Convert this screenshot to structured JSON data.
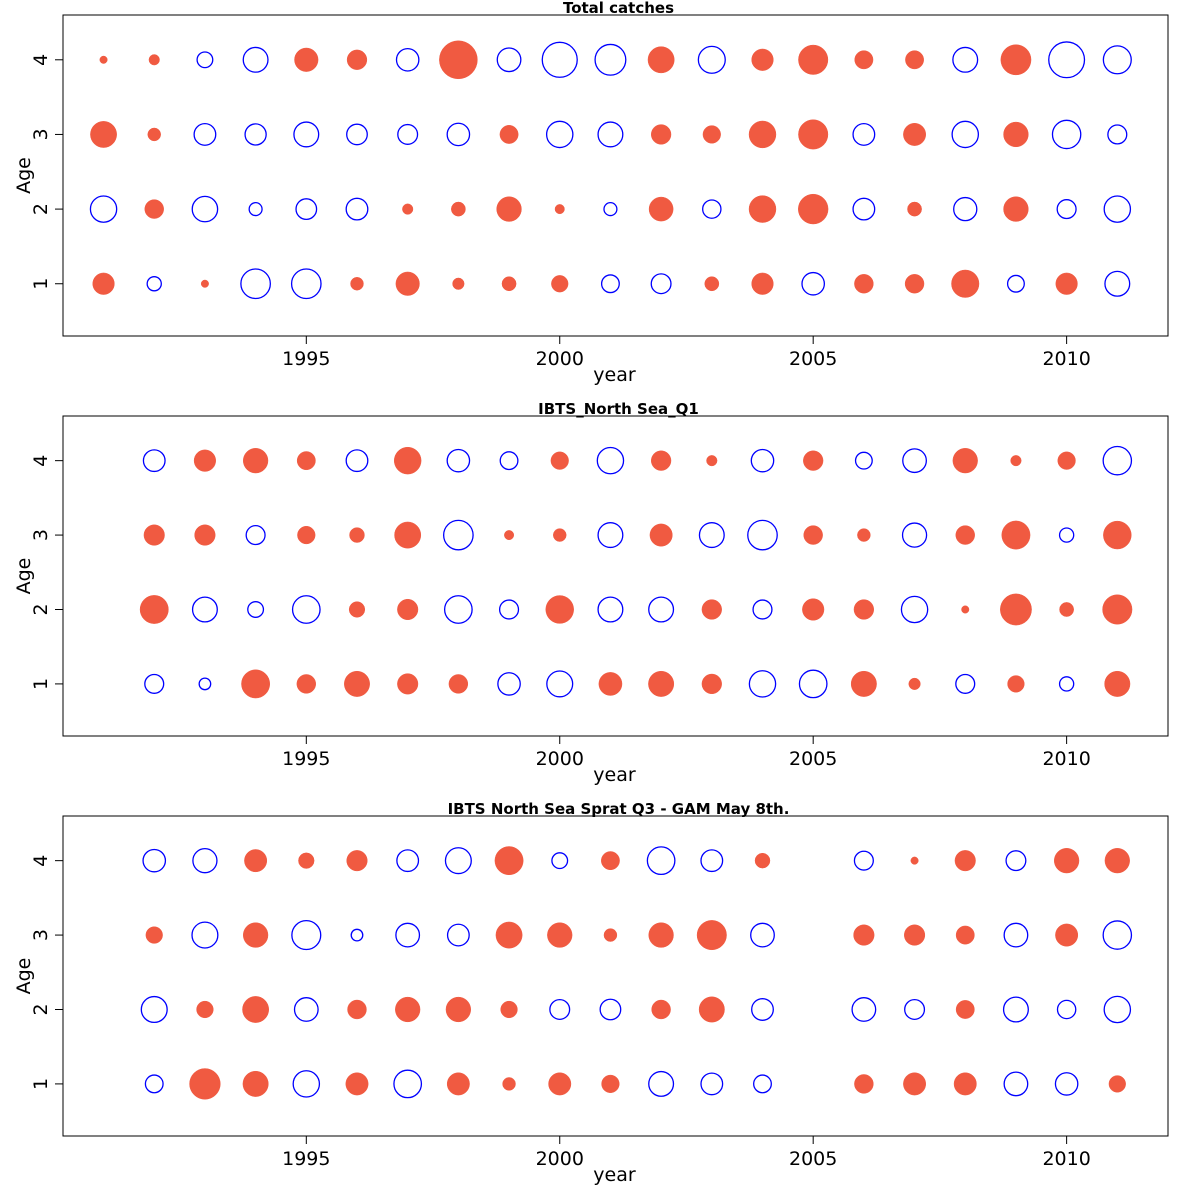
{
  "colors": {
    "positive": "#f05a41",
    "negative": "#0000ff",
    "frame": "#000000"
  },
  "legend": "none",
  "grid": false,
  "chart_data": [
    {
      "type": "scatter",
      "title": "Total catches",
      "xlabel": "year",
      "ylabel": "Age",
      "xlim": [
        1990.2,
        2012.0
      ],
      "ylim": [
        0.3,
        4.6
      ],
      "xticks": [
        1995,
        2000,
        2005,
        2010
      ],
      "yticks": [
        1,
        2,
        3,
        4
      ],
      "years": [
        1991,
        1992,
        1993,
        1994,
        1995,
        1996,
        1997,
        1998,
        1999,
        2000,
        2001,
        2002,
        2003,
        2004,
        2005,
        2006,
        2007,
        2008,
        2009,
        2010,
        2011
      ],
      "residuals": {
        "4": [
          0.05,
          0.1,
          -0.22,
          -0.55,
          0.5,
          0.35,
          -0.45,
          1.3,
          -0.5,
          -1.1,
          -0.85,
          0.62,
          -0.65,
          0.42,
          0.78,
          0.3,
          0.3,
          -0.55,
          0.82,
          -1.15,
          -0.7
        ],
        "3": [
          0.62,
          0.15,
          -0.42,
          -0.4,
          -0.55,
          -0.38,
          -0.35,
          -0.45,
          0.3,
          -0.62,
          -0.55,
          0.35,
          0.28,
          0.65,
          0.78,
          -0.42,
          0.45,
          -0.62,
          0.55,
          -0.72,
          -0.32
        ],
        "2": [
          -0.62,
          0.32,
          -0.58,
          -0.15,
          -0.38,
          -0.42,
          0.1,
          0.18,
          0.55,
          0.08,
          -0.15,
          0.52,
          -0.3,
          0.65,
          0.8,
          -0.42,
          0.18,
          -0.48,
          0.55,
          -0.32,
          -0.62
        ],
        "1": [
          0.42,
          -0.18,
          0.05,
          -0.78,
          -0.78,
          0.15,
          0.5,
          0.12,
          0.18,
          0.25,
          -0.28,
          -0.35,
          0.18,
          0.42,
          -0.45,
          0.32,
          0.32,
          0.68,
          -0.25,
          0.42,
          -0.55
        ]
      }
    },
    {
      "type": "scatter",
      "title": "IBTS_North Sea_Q1",
      "xlabel": "year",
      "ylabel": "Age",
      "xlim": [
        1990.2,
        2012.0
      ],
      "ylim": [
        0.3,
        4.6
      ],
      "xticks": [
        1995,
        2000,
        2005,
        2010
      ],
      "yticks": [
        1,
        2,
        3,
        4
      ],
      "years": [
        1992,
        1993,
        1994,
        1995,
        1996,
        1997,
        1998,
        1999,
        2000,
        2001,
        2002,
        2003,
        2004,
        2005,
        2006,
        2007,
        2008,
        2009,
        2010,
        2011
      ],
      "residuals": {
        "4": [
          -0.42,
          0.42,
          0.55,
          0.3,
          -0.42,
          0.65,
          -0.45,
          -0.28,
          0.28,
          -0.62,
          0.35,
          0.1,
          -0.45,
          0.35,
          -0.25,
          -0.5,
          0.55,
          0.1,
          0.28,
          -0.72
        ],
        "3": [
          0.38,
          0.38,
          -0.32,
          0.28,
          0.2,
          0.62,
          -0.78,
          0.08,
          0.15,
          -0.55,
          0.45,
          -0.55,
          -0.78,
          0.32,
          0.15,
          -0.52,
          0.32,
          0.72,
          -0.18,
          0.7
        ],
        "2": [
          0.72,
          -0.55,
          -0.22,
          -0.68,
          0.22,
          0.38,
          -0.68,
          -0.32,
          0.7,
          -0.55,
          -0.55,
          0.35,
          -0.32,
          0.42,
          0.35,
          -0.62,
          0.05,
          0.88,
          0.18,
          0.78
        ],
        "1": [
          -0.32,
          -0.12,
          0.72,
          0.32,
          0.58,
          0.38,
          0.32,
          -0.45,
          -0.6,
          0.48,
          0.58,
          0.35,
          -0.62,
          -0.68,
          0.58,
          0.12,
          -0.32,
          0.25,
          -0.18,
          0.58
        ]
      }
    },
    {
      "type": "scatter",
      "title": "IBTS North Sea Sprat Q3 - GAM May 8th.",
      "xlabel": "year",
      "ylabel": "Age",
      "xlim": [
        1990.2,
        2012.0
      ],
      "ylim": [
        0.3,
        4.6
      ],
      "xticks": [
        1995,
        2000,
        2005,
        2010
      ],
      "yticks": [
        1,
        2,
        3,
        4
      ],
      "years": [
        1992,
        1993,
        1994,
        1995,
        1996,
        1997,
        1998,
        1999,
        2000,
        2001,
        2002,
        2003,
        2004,
        2006,
        2007,
        2008,
        2009,
        2010,
        2011
      ],
      "residuals": {
        "4": [
          -0.45,
          -0.52,
          0.45,
          0.22,
          0.38,
          -0.42,
          -0.6,
          0.72,
          -0.22,
          0.3,
          -0.68,
          -0.42,
          0.2,
          -0.32,
          0.05,
          0.38,
          -0.35,
          0.55,
          0.55
        ],
        "3": [
          0.25,
          -0.6,
          0.55,
          -0.75,
          -0.12,
          -0.5,
          -0.42,
          0.62,
          0.55,
          0.15,
          0.55,
          0.78,
          -0.5,
          0.38,
          0.38,
          0.3,
          -0.5,
          0.45,
          -0.72
        ],
        "2": [
          -0.6,
          0.25,
          0.62,
          -0.5,
          0.32,
          0.55,
          0.55,
          0.25,
          -0.35,
          -0.38,
          0.32,
          0.58,
          -0.42,
          -0.5,
          -0.35,
          0.3,
          -0.55,
          -0.3,
          -0.62
        ],
        "1": [
          -0.28,
          0.85,
          0.58,
          -0.62,
          0.45,
          -0.68,
          0.45,
          0.15,
          0.45,
          0.28,
          -0.55,
          -0.42,
          -0.28,
          0.32,
          0.45,
          0.45,
          -0.5,
          -0.45,
          0.25
        ]
      }
    }
  ]
}
